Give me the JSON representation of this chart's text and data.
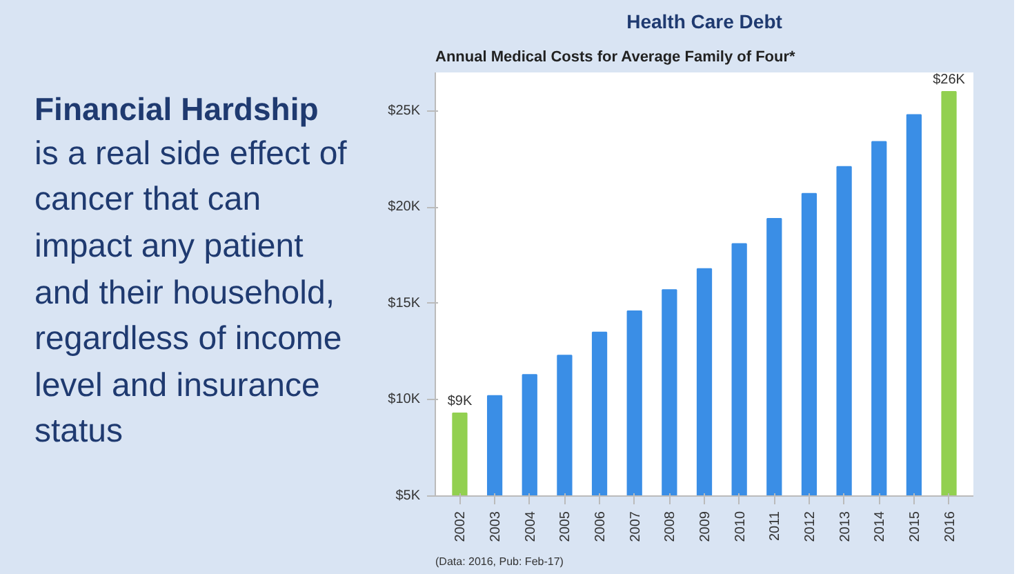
{
  "chart_data": {
    "type": "bar",
    "title": "Health Care Debt",
    "subtitle": "Annual Medical Costs for Average Family of Four*",
    "categories": [
      "2002",
      "2003",
      "2004",
      "2005",
      "2006",
      "2007",
      "2008",
      "2009",
      "2010",
      "2011",
      "2012",
      "2013",
      "2014",
      "2015",
      "2016"
    ],
    "values": [
      9.3,
      10.2,
      11.3,
      12.3,
      13.5,
      14.6,
      15.7,
      16.8,
      18.1,
      19.4,
      20.7,
      22.1,
      23.4,
      24.8,
      26
    ],
    "colors": [
      "#92d050",
      "#3a8ee6",
      "#3a8ee6",
      "#3a8ee6",
      "#3a8ee6",
      "#3a8ee6",
      "#3a8ee6",
      "#3a8ee6",
      "#3a8ee6",
      "#3a8ee6",
      "#3a8ee6",
      "#3a8ee6",
      "#3a8ee6",
      "#3a8ee6",
      "#92d050"
    ],
    "value_labels": [
      "$9K",
      null,
      null,
      null,
      null,
      null,
      null,
      null,
      null,
      null,
      null,
      null,
      null,
      null,
      "$26K"
    ],
    "ylim": [
      5,
      27
    ],
    "yticks": [
      {
        "value": 5,
        "label": "$5K"
      },
      {
        "value": 10,
        "label": "$10K"
      },
      {
        "value": 15,
        "label": "$15K"
      },
      {
        "value": 20,
        "label": "$20K"
      },
      {
        "value": 25,
        "label": "$25K"
      }
    ],
    "grid": false,
    "annotations": [
      "Financial Hardship",
      "is a real side effect of cancer that can impact any patient and their household, regardless of income level and insurance status",
      "(Data: 2016, Pub: Feb-17)"
    ]
  }
}
